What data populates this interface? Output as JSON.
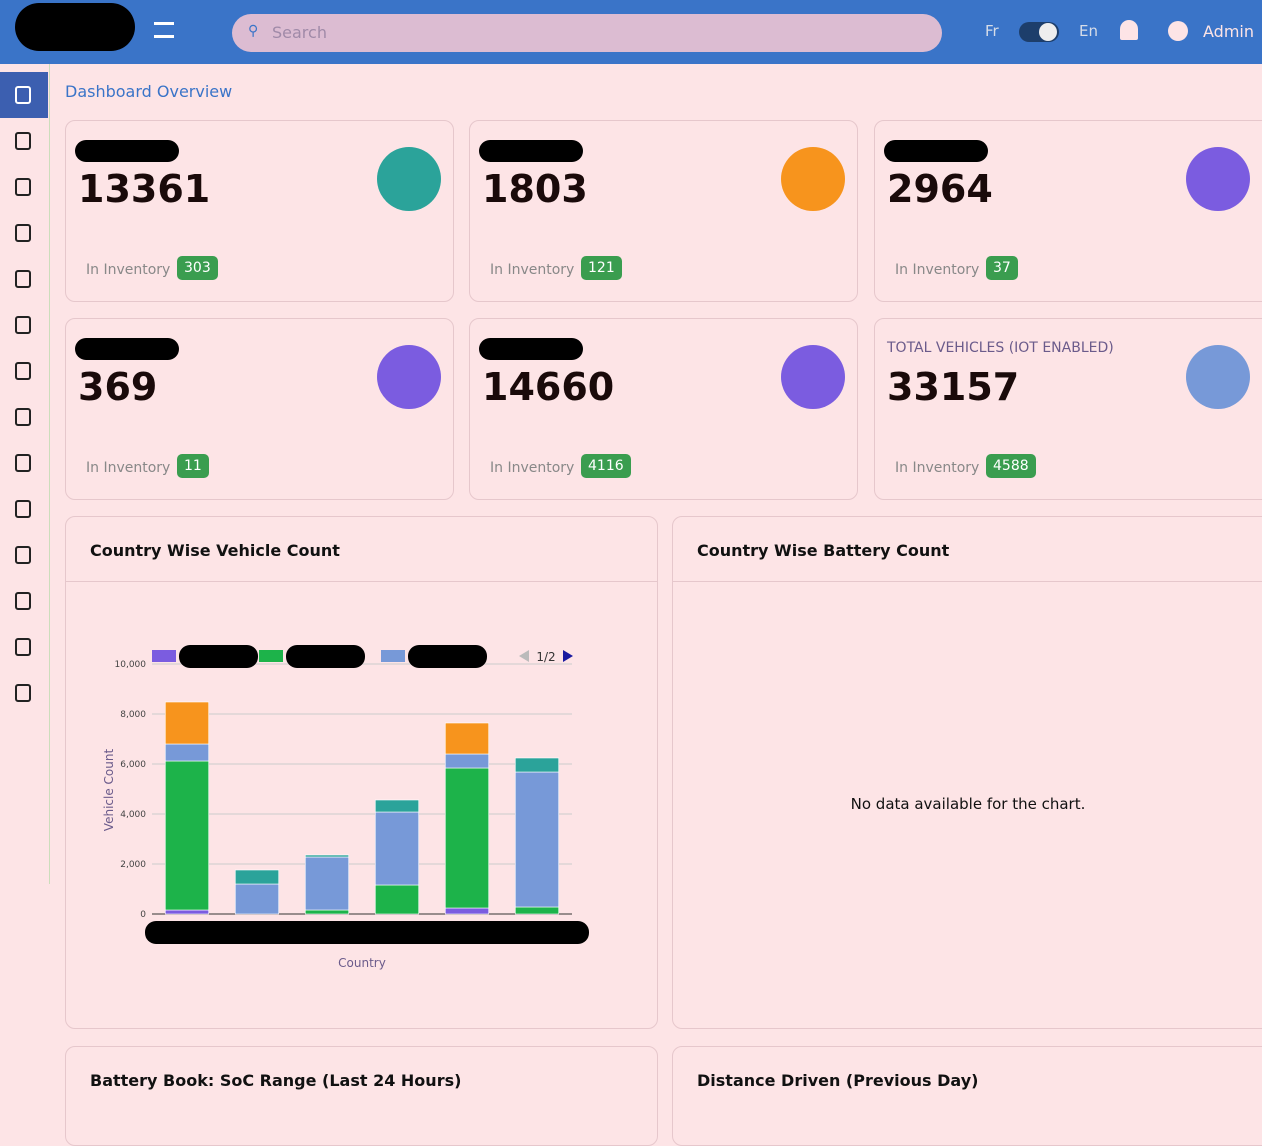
{
  "header": {
    "search_placeholder": "Search",
    "lang_left": "Fr",
    "lang_right": "En",
    "user": "Admin"
  },
  "breadcrumb": "Dashboard Overview",
  "cards": [
    {
      "value": "13361",
      "inventory_label": "In Inventory",
      "inventory": "303",
      "icon_color": "#2ba39a"
    },
    {
      "value": "1803",
      "inventory_label": "In Inventory",
      "inventory": "121",
      "icon_color": "#f7941d"
    },
    {
      "value": "2964",
      "inventory_label": "In Inventory",
      "inventory": "37",
      "icon_color": "#7b5ce0"
    },
    {
      "value": "369",
      "inventory_label": "In Inventory",
      "inventory": "11",
      "icon_color": "#7b5ce0"
    },
    {
      "value": "14660",
      "inventory_label": "In Inventory",
      "inventory": "4116",
      "icon_color": "#7b5ce0"
    },
    {
      "title": "TOTAL VEHICLES (IOT ENABLED)",
      "value": "33157",
      "inventory_label": "In Inventory",
      "inventory": "4588",
      "icon_color": "#7799d8"
    }
  ],
  "chart_data": {
    "type": "stacked-bar",
    "title": "Country Wise Vehicle Count",
    "x_label": "Country",
    "y_label": "Vehicle Count",
    "categories": [
      null,
      null,
      null,
      null,
      null,
      null
    ],
    "series": [
      {
        "color": "#7b5ce0",
        "values": [
          160,
          0,
          0,
          0,
          240,
          0
        ]
      },
      {
        "color": "#1db34a",
        "values": [
          5960,
          0,
          160,
          1160,
          5600,
          280
        ]
      },
      {
        "color": "#7799d8",
        "values": [
          680,
          1200,
          2120,
          2920,
          560,
          5400
        ]
      },
      {
        "color": "#2ba39a",
        "values": [
          0,
          560,
          80,
          480,
          0,
          560
        ]
      },
      {
        "color": "#f7941d",
        "values": [
          1680,
          0,
          0,
          0,
          1240,
          0
        ]
      }
    ],
    "legend_page": "1/2",
    "ylim": [
      0,
      10000
    ],
    "yticks": [
      0,
      {
        "value": 2000,
        "label": "2,000"
      },
      {
        "value": 4000,
        "label": "4,000"
      },
      {
        "value": 6000,
        "label": "6,000"
      },
      {
        "value": 8000,
        "label": "8,000"
      },
      {
        "value": 10000,
        "label": "10,000"
      }
    ],
    "grid": true
  },
  "battery_chart": {
    "title": "Country Wise Battery Count",
    "message": "No data available for the chart."
  },
  "bottom_cards": [
    "Battery Book: SoC Range (Last 24 Hours)",
    "Distance Driven (Previous Day)"
  ]
}
